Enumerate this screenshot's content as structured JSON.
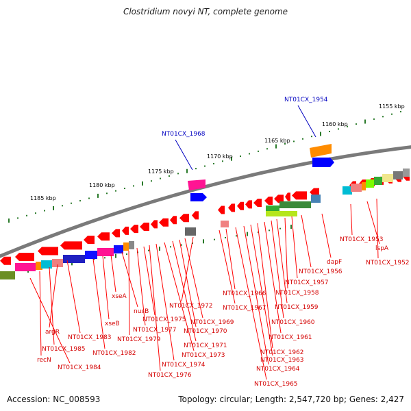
{
  "title": "Clostridium novyi NT, complete genome",
  "accession": "Accession: NC_008593",
  "topology": "Topology: circular; Length: 2,547,720 bp; Genes: 2,427",
  "colors": {
    "gene": "#ff0000",
    "label": "#d40000",
    "highlight": "#0000c0",
    "tick": "#2a7a2a",
    "backbone": "#777777"
  },
  "kbp_labels": [
    "1155 kbp",
    "1160 kbp",
    "1165 kbp",
    "1170 kbp",
    "1175 kbp",
    "1180 kbp",
    "1185 kbp"
  ],
  "highlight_labels": [
    "NT01CX_1954",
    "NT01CX_1968"
  ],
  "gene_labels": [
    "NT01CX_1953",
    "lspA",
    "NT01CX_1952",
    "dapF",
    "NT01CX_1956",
    "NT01CX_1957",
    "NT01CX_1958",
    "NT01CX_1959",
    "NT01CX_1960",
    "NT01CX_1961",
    "NT01CX_1962",
    "NT01CX_1963",
    "NT01CX_1964",
    "NT01CX_1965",
    "NT01CX_1966",
    "NT01CX_1967",
    "NT01CX_1972",
    "NT01CX_1969",
    "NT01CX_1970",
    "NT01CX_1971",
    "NT01CX_1973",
    "NT01CX_1974",
    "NT01CX_1976",
    "NT01CX_1975",
    "NT01CX_1977",
    "NT01CX_1979",
    "nusB",
    "xseA",
    "xseB",
    "NT01CX_1982",
    "NT01CX_1983",
    "argR",
    "NT01CX_1985",
    "recN",
    "NT01CX_1984"
  ]
}
